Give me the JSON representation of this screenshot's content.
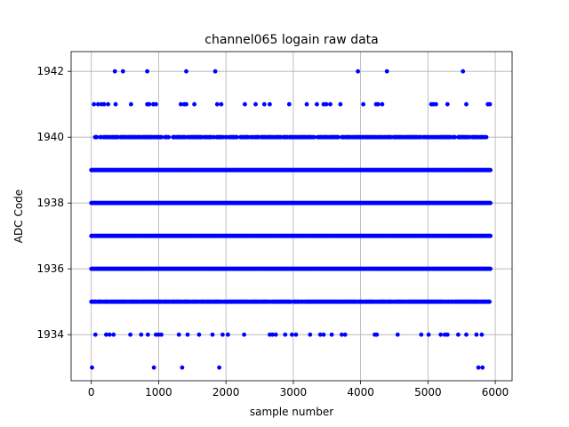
{
  "chart_data": {
    "type": "scatter",
    "title": "channel065 logain raw data",
    "xlabel": "sample number",
    "ylabel": "ADC Code",
    "xlim": [
      -300,
      6250
    ],
    "ylim": [
      1932.6,
      1942.6
    ],
    "xticks": [
      0,
      1000,
      2000,
      3000,
      4000,
      5000,
      6000
    ],
    "yticks": [
      1934,
      1936,
      1938,
      1940,
      1942
    ],
    "grid": true,
    "marker_color": "#0000ff",
    "dense_levels": [
      {
        "level": 1935,
        "x_range": [
          0,
          5920
        ],
        "gap_pct": 8
      },
      {
        "level": 1936,
        "x_range": [
          0,
          5940
        ],
        "gap_pct": 0
      },
      {
        "level": 1937,
        "x_range": [
          0,
          5940
        ],
        "gap_pct": 0
      },
      {
        "level": 1938,
        "x_range": [
          0,
          5940
        ],
        "gap_pct": 0
      },
      {
        "level": 1939,
        "x_range": [
          0,
          5940
        ],
        "gap_pct": 0
      },
      {
        "level": 1940,
        "x_range": [
          30,
          5900
        ],
        "gap_pct": 22
      }
    ],
    "sparse_points": [
      {
        "y": 1942,
        "x": [
          350,
          470,
          830,
          1410,
          1840,
          3960,
          4390,
          5520
        ]
      },
      {
        "y": 1941,
        "x": [
          40,
          100,
          150,
          190,
          250,
          360,
          590,
          830,
          860,
          920,
          960,
          1330,
          1380,
          1410,
          1530,
          1870,
          1930,
          2280,
          2440,
          2570,
          2650,
          2940,
          3200,
          3350,
          3450,
          3490,
          3550,
          3700,
          4040,
          4230,
          4260,
          4320,
          5050,
          5080,
          5120,
          5290,
          5570,
          5890,
          5920
        ]
      },
      {
        "y": 1934,
        "x": [
          60,
          220,
          270,
          330,
          580,
          740,
          840,
          960,
          1000,
          1040,
          1300,
          1430,
          1600,
          1800,
          1950,
          2030,
          2270,
          2650,
          2690,
          2740,
          2880,
          2980,
          3040,
          3250,
          3400,
          3450,
          3570,
          3720,
          3770,
          4210,
          4240,
          4550,
          4900,
          5010,
          5190,
          5250,
          5290,
          5450,
          5570,
          5720,
          5800
        ]
      },
      {
        "y": 1933,
        "x": [
          10,
          930,
          1350,
          1900,
          5750,
          5810
        ]
      }
    ]
  }
}
